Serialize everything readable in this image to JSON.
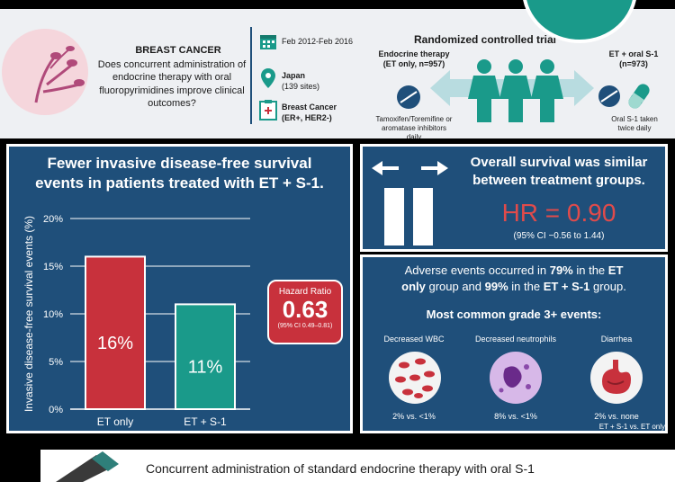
{
  "header": {
    "title": "BREAST CANCER",
    "question": "Does concurrent administration of endocrine therapy with oral fluoropyrimidines improve clinical outcomes?"
  },
  "study": {
    "dates": "Feb 2012-Feb 2016",
    "location": "Japan",
    "sites": "(139 sites)",
    "population_label": "Breast Cancer",
    "population_detail": "(ER+, HER2-)"
  },
  "trial": {
    "title": "Randomized controlled trial",
    "arm1_label_line1": "Endocrine therapy",
    "arm1_label_line2": "(ET only, n=957)",
    "arm1_desc_line1": "Tamoxifen/Toremifine or",
    "arm1_desc_line2": "aromatase inhibitors",
    "arm1_desc_line3": "daily",
    "arm2_label_line1": "ET + oral S-1",
    "arm2_label_line2": "(n=973)",
    "arm2_desc_line1": "Oral S-1 taken",
    "arm2_desc_line2": "twice daily"
  },
  "left": {
    "heading_line1": "Fewer invasive disease-free survival",
    "heading_line2": "events in patients treated with ET + S-1."
  },
  "chart_data": {
    "type": "bar",
    "categories": [
      "ET only",
      "ET + S-1"
    ],
    "values": [
      16,
      11
    ],
    "value_labels": [
      "16%",
      "11%"
    ],
    "colors": [
      "#c8313c",
      "#1a9a8a"
    ],
    "ylabel": "Invasive disease-free survival events (%)",
    "yticks": [
      "0%",
      "5%",
      "10%",
      "15%",
      "20%"
    ],
    "ylim": [
      0,
      20
    ],
    "grid": true
  },
  "hazard": {
    "label": "Hazard Ratio",
    "value": "0.63",
    "ci": "(95% CI 0.49–0.81)"
  },
  "overall": {
    "heading_line1": "Overall survival was similar",
    "heading_line2": "between treatment groups.",
    "hr": "HR = 0.90",
    "ci": "(95% CI −0.56 to 1.44)"
  },
  "adverse": {
    "line1_a": "Adverse events occurred in ",
    "line1_b": "79%",
    "line1_c": " in the ",
    "line1_d": "ET",
    "line2_a": "only",
    "line2_b": " group and ",
    "line2_c": "99%",
    "line2_d": " in the ",
    "line2_e": "ET + S-1",
    "line2_f": " group.",
    "subheading": "Most common grade 3+ events:",
    "events": [
      {
        "label": "Decreased WBC",
        "value": "2% vs. <1%"
      },
      {
        "label": "Decreased neutrophils",
        "value": "8% vs. <1%"
      },
      {
        "label": "Diarrhea",
        "value": "2% vs. none"
      }
    ],
    "footnote": "ET + S-1 vs. ET only"
  },
  "conclusion": {
    "text": "Concurrent administration of standard endocrine therapy with oral S-1"
  },
  "colors": {
    "navy": "#1f4f7a",
    "red": "#c8313c",
    "teal": "#1a9a8a",
    "hr_red": "#e04b4b",
    "pink": "#f5d6dc"
  }
}
